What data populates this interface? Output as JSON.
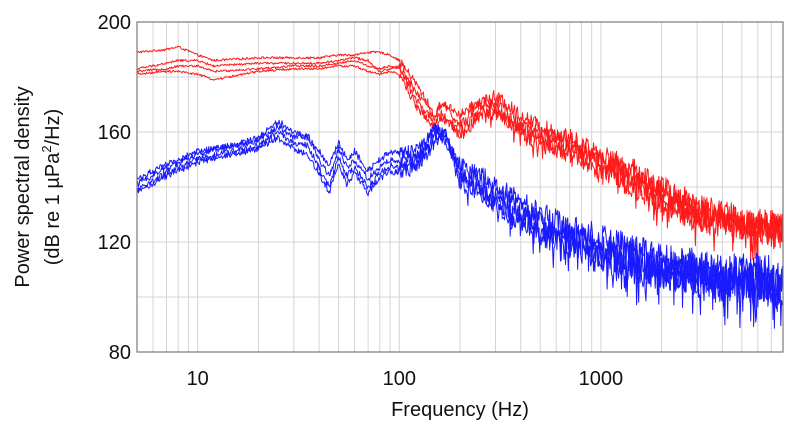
{
  "chart_data": {
    "type": "line",
    "title": "",
    "xlabel": "Frequency (Hz)",
    "ylabel_line1": "Power spectral density",
    "ylabel_line2_prefix": "(dB re 1 µPa",
    "ylabel_superscript": "2",
    "ylabel_line2_suffix": "/Hz)",
    "xscale": "log",
    "xlim": [
      5,
      8000
    ],
    "ylim": [
      80,
      200
    ],
    "x_ticks": [
      10,
      100,
      1000
    ],
    "x_tick_labels": [
      "10",
      "100",
      "1000"
    ],
    "y_ticks": [
      80,
      120,
      160,
      200
    ],
    "y_tick_labels": [
      "80",
      "120",
      "160",
      "200"
    ],
    "grid": "vertical minor log grid, horizontal every 20",
    "series": [
      {
        "name": "red 1",
        "color": "#ff1a1a",
        "x": [
          5,
          7,
          8,
          10,
          12,
          20,
          30,
          40,
          50,
          60,
          70,
          80,
          90,
          100,
          120,
          140,
          150,
          160,
          180,
          200,
          250,
          300,
          400,
          500,
          700,
          1000,
          1500,
          2000,
          3000,
          5000,
          8000
        ],
        "y": [
          189,
          190,
          191,
          188,
          186,
          187,
          187,
          187,
          188,
          188,
          189,
          189,
          188,
          186,
          178,
          170,
          165,
          170,
          169,
          166,
          171,
          173,
          166,
          162,
          158,
          152,
          146,
          140,
          134,
          128,
          126
        ]
      },
      {
        "name": "red 2",
        "color": "#ff1a1a",
        "x": [
          5,
          7,
          8,
          10,
          12,
          20,
          30,
          40,
          50,
          60,
          70,
          80,
          90,
          100,
          120,
          140,
          150,
          160,
          180,
          200,
          250,
          300,
          400,
          500,
          700,
          1000,
          1500,
          2000,
          3000,
          5000,
          8000
        ],
        "y": [
          183,
          185,
          186,
          186,
          184,
          185,
          185,
          185,
          186,
          187,
          186,
          182,
          183,
          184,
          175,
          169,
          164,
          171,
          167,
          162,
          170,
          171,
          163,
          159,
          156,
          150,
          143,
          138,
          132,
          127,
          125
        ]
      },
      {
        "name": "red 3",
        "color": "#ff1a1a",
        "x": [
          5,
          7,
          8,
          10,
          12,
          20,
          30,
          40,
          50,
          60,
          70,
          80,
          90,
          100,
          120,
          140,
          150,
          160,
          180,
          200,
          250,
          300,
          400,
          500,
          700,
          1000,
          1500,
          2000,
          3000,
          5000,
          8000
        ],
        "y": [
          182,
          183,
          184,
          184,
          182,
          183,
          184,
          184,
          185,
          186,
          184,
          183,
          184,
          183,
          172,
          166,
          162,
          167,
          164,
          160,
          168,
          169,
          161,
          157,
          154,
          148,
          141,
          136,
          130,
          126,
          124
        ]
      },
      {
        "name": "red 4",
        "color": "#ff1a1a",
        "x": [
          5,
          7,
          8,
          10,
          12,
          20,
          30,
          40,
          50,
          60,
          70,
          80,
          90,
          100,
          120,
          140,
          150,
          160,
          180,
          200,
          250,
          300,
          400,
          500,
          700,
          1000,
          1500,
          2000,
          3000,
          5000,
          8000
        ],
        "y": [
          181,
          182,
          182,
          181,
          179,
          182,
          183,
          183,
          184,
          184,
          182,
          181,
          182,
          181,
          170,
          164,
          160,
          165,
          163,
          158,
          166,
          167,
          160,
          155,
          152,
          146,
          139,
          134,
          128,
          125,
          123
        ]
      },
      {
        "name": "blue 1",
        "color": "#1a1aff",
        "x": [
          5,
          7,
          10,
          15,
          20,
          25,
          30,
          35,
          40,
          45,
          50,
          55,
          60,
          70,
          80,
          90,
          100,
          120,
          140,
          150,
          170,
          200,
          250,
          300,
          400,
          500,
          700,
          1000,
          1500,
          2000,
          3000,
          5000,
          8000
        ],
        "y": [
          143,
          148,
          153,
          155,
          158,
          164,
          160,
          158,
          153,
          148,
          156,
          150,
          153,
          146,
          150,
          153,
          152,
          153,
          158,
          162,
          156,
          148,
          145,
          140,
          135,
          130,
          126,
          121,
          117,
          113,
          111,
          109,
          107
        ]
      },
      {
        "name": "blue 2",
        "color": "#1a1aff",
        "x": [
          5,
          7,
          10,
          15,
          20,
          25,
          30,
          35,
          40,
          45,
          50,
          55,
          60,
          70,
          80,
          90,
          100,
          120,
          140,
          150,
          170,
          200,
          250,
          300,
          400,
          500,
          700,
          1000,
          1500,
          2000,
          3000,
          5000,
          8000
        ],
        "y": [
          141,
          147,
          152,
          155,
          157,
          162,
          158,
          159,
          150,
          144,
          154,
          147,
          150,
          143,
          147,
          150,
          149,
          151,
          155,
          161,
          158,
          145,
          142,
          137,
          132,
          127,
          123,
          118,
          114,
          111,
          109,
          107,
          105
        ]
      },
      {
        "name": "blue 3",
        "color": "#1a1aff",
        "x": [
          5,
          7,
          10,
          15,
          20,
          25,
          30,
          35,
          40,
          45,
          50,
          55,
          60,
          70,
          80,
          90,
          100,
          120,
          140,
          150,
          170,
          200,
          250,
          300,
          400,
          500,
          700,
          1000,
          1500,
          2000,
          3000,
          5000,
          8000
        ],
        "y": [
          139,
          145,
          150,
          153,
          155,
          160,
          156,
          155,
          147,
          140,
          151,
          144,
          147,
          140,
          145,
          148,
          147,
          149,
          154,
          159,
          160,
          143,
          140,
          135,
          130,
          125,
          121,
          116,
          112,
          109,
          107,
          105,
          104
        ]
      },
      {
        "name": "blue 4",
        "color": "#1a1aff",
        "x": [
          5,
          7,
          10,
          15,
          20,
          25,
          30,
          35,
          40,
          45,
          50,
          55,
          60,
          70,
          80,
          90,
          100,
          120,
          140,
          150,
          170,
          200,
          250,
          300,
          400,
          500,
          700,
          1000,
          1500,
          2000,
          3000,
          5000,
          8000
        ],
        "y": [
          138,
          144,
          149,
          152,
          154,
          158,
          154,
          152,
          145,
          138,
          149,
          141,
          145,
          138,
          143,
          146,
          145,
          147,
          152,
          157,
          159,
          141,
          138,
          133,
          128,
          123,
          119,
          114,
          110,
          108,
          106,
          104,
          103
        ]
      }
    ]
  }
}
